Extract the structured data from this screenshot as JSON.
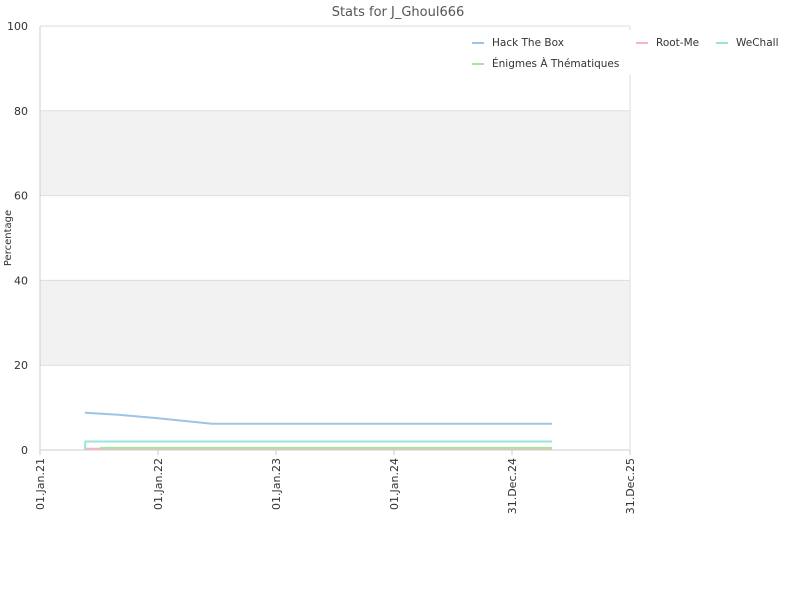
{
  "chart_data": {
    "type": "line",
    "title": "Stats for J_Ghoul666",
    "y_label": "Percentage",
    "xlim": [
      "2021-01-01",
      "2025-12-31"
    ],
    "xticks": [
      {
        "value": "2021-01-01",
        "label": "01.Jan.21"
      },
      {
        "value": "2022-01-01",
        "label": "01.Jan.22"
      },
      {
        "value": "2023-01-01",
        "label": "01.Jan.23"
      },
      {
        "value": "2024-01-01",
        "label": "01.Jan.24"
      },
      {
        "value": "2024-12-31",
        "label": "31.Dec.24"
      },
      {
        "value": "2025-12-31",
        "label": "31.Dec.25"
      }
    ],
    "ylim": [
      0,
      100
    ],
    "yticks": [
      0,
      20,
      40,
      60,
      80,
      100
    ],
    "grid": true,
    "series": [
      {
        "name": "Hack The Box",
        "color": "#9dc3e6",
        "x": [
          "2021-05-20",
          "2021-09-01",
          "2022-01-01",
          "2022-06-17",
          "2025-05-04"
        ],
        "values": [
          8.8,
          8.3,
          7.5,
          6.2,
          6.2
        ]
      },
      {
        "name": "Root-Me",
        "color": "#f4b6c2",
        "x": [
          "2021-05-20",
          "2025-05-04"
        ],
        "values": [
          0.3,
          0.3
        ]
      },
      {
        "name": "WeChall",
        "color": "#99e6d8",
        "x": [
          "2021-05-20",
          "2021-05-21",
          "2025-05-04"
        ],
        "values": [
          0,
          2,
          2
        ]
      },
      {
        "name": "Énigmes À Thématiques",
        "color": "#a8e6a0",
        "x": [
          "2021-07-06",
          "2025-05-04"
        ],
        "values": [
          0.5,
          0.5
        ]
      }
    ]
  }
}
